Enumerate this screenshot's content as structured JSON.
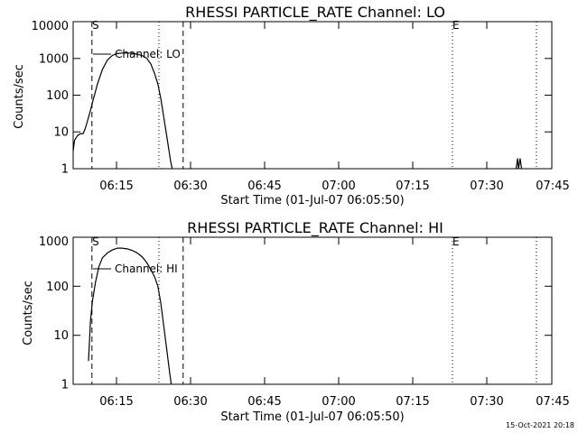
{
  "footer": {
    "timestamp": "15-Oct-2021 20:18"
  },
  "chart_data": [
    {
      "type": "line",
      "title": "RHESSI PARTICLE_RATE Channel: LO",
      "xlabel": "Start Time (01-Jul-07 06:05:50)",
      "ylabel": "Counts/sec",
      "y_scale": "log",
      "ylim": [
        1,
        10000
      ],
      "xlim_minutes": [
        6.1,
        102.7
      ],
      "x_ticks": [
        {
          "m": 15,
          "label": "06:15"
        },
        {
          "m": 30,
          "label": "06:30"
        },
        {
          "m": 45,
          "label": "06:45"
        },
        {
          "m": 60,
          "label": "07:00"
        },
        {
          "m": 75,
          "label": "07:15"
        },
        {
          "m": 90,
          "label": "07:30"
        },
        {
          "m": 105,
          "label": "07:45"
        }
      ],
      "y_ticks": [
        {
          "v": 1,
          "label": "1"
        },
        {
          "v": 10,
          "label": "10"
        },
        {
          "v": 100,
          "label": "100"
        },
        {
          "v": 1000,
          "label": "1000"
        },
        {
          "v": 10000,
          "label": "10000"
        }
      ],
      "legend": "Channel: LO",
      "markers": [
        {
          "label": "S",
          "m": 9.5,
          "style": "dashed"
        },
        {
          "label": "",
          "m": 27.7,
          "style": "dashed"
        },
        {
          "label": "",
          "m": 23.2,
          "style": "dotted"
        },
        {
          "label": "E",
          "m": 83.8,
          "style": "dotted"
        },
        {
          "label": "",
          "m": 99.1,
          "style": "dotted"
        }
      ],
      "series": [
        {
          "points": [
            [
              6.1,
              3
            ],
            [
              6.4,
              6
            ],
            [
              7.0,
              8
            ],
            [
              7.6,
              9
            ],
            [
              8.1,
              9
            ],
            [
              8.5,
              12
            ],
            [
              9.0,
              20
            ],
            [
              9.5,
              35
            ],
            [
              10.2,
              80
            ],
            [
              11.0,
              200
            ],
            [
              12.0,
              500
            ],
            [
              13.0,
              900
            ],
            [
              14.0,
              1200
            ],
            [
              15.0,
              1350
            ],
            [
              16.0,
              1400
            ],
            [
              17.0,
              1400
            ],
            [
              18.0,
              1380
            ],
            [
              19.0,
              1300
            ],
            [
              20.0,
              1200
            ],
            [
              21.0,
              1000
            ],
            [
              21.8,
              700
            ],
            [
              22.5,
              400
            ],
            [
              23.2,
              200
            ],
            [
              23.8,
              80
            ],
            [
              24.5,
              20
            ],
            [
              25.2,
              5
            ],
            [
              25.8,
              1.5
            ],
            [
              26.1,
              1
            ]
          ]
        },
        {
          "points": [
            [
              95.5,
              1
            ],
            [
              95.8,
              1.9
            ],
            [
              96.0,
              1
            ],
            [
              96.3,
              1.9
            ],
            [
              96.6,
              1
            ]
          ]
        }
      ]
    },
    {
      "type": "line",
      "title": "RHESSI PARTICLE_RATE Channel: HI",
      "xlabel": "Start Time (01-Jul-07 06:05:50)",
      "ylabel": "Counts/sec",
      "y_scale": "log",
      "ylim": [
        1,
        1000
      ],
      "xlim_minutes": [
        6.1,
        102.7
      ],
      "x_ticks": [
        {
          "m": 15,
          "label": "06:15"
        },
        {
          "m": 30,
          "label": "06:30"
        },
        {
          "m": 45,
          "label": "06:45"
        },
        {
          "m": 60,
          "label": "07:00"
        },
        {
          "m": 75,
          "label": "07:15"
        },
        {
          "m": 90,
          "label": "07:30"
        },
        {
          "m": 105,
          "label": "07:45"
        }
      ],
      "y_ticks": [
        {
          "v": 1,
          "label": "1"
        },
        {
          "v": 10,
          "label": "10"
        },
        {
          "v": 100,
          "label": "100"
        },
        {
          "v": 1000,
          "label": "1000"
        }
      ],
      "legend": "Channel: HI",
      "markers": [
        {
          "label": "S",
          "m": 9.5,
          "style": "dashed"
        },
        {
          "label": "",
          "m": 27.7,
          "style": "dashed"
        },
        {
          "label": "",
          "m": 23.2,
          "style": "dotted"
        },
        {
          "label": "E",
          "m": 83.8,
          "style": "dotted"
        },
        {
          "label": "",
          "m": 99.1,
          "style": "dotted"
        }
      ],
      "series": [
        {
          "points": [
            [
              9.2,
              3
            ],
            [
              9.6,
              20
            ],
            [
              10.0,
              50
            ],
            [
              10.6,
              120
            ],
            [
              11.3,
              250
            ],
            [
              12.0,
              380
            ],
            [
              13.0,
              480
            ],
            [
              14.0,
              550
            ],
            [
              15.0,
              600
            ],
            [
              16.0,
              600
            ],
            [
              17.0,
              580
            ],
            [
              18.0,
              540
            ],
            [
              19.0,
              480
            ],
            [
              20.0,
              400
            ],
            [
              21.0,
              300
            ],
            [
              22.0,
              200
            ],
            [
              22.6,
              150
            ],
            [
              23.2,
              100
            ],
            [
              23.8,
              45
            ],
            [
              24.4,
              15
            ],
            [
              25.0,
              5
            ],
            [
              25.5,
              2
            ],
            [
              25.9,
              1
            ]
          ]
        }
      ]
    }
  ]
}
